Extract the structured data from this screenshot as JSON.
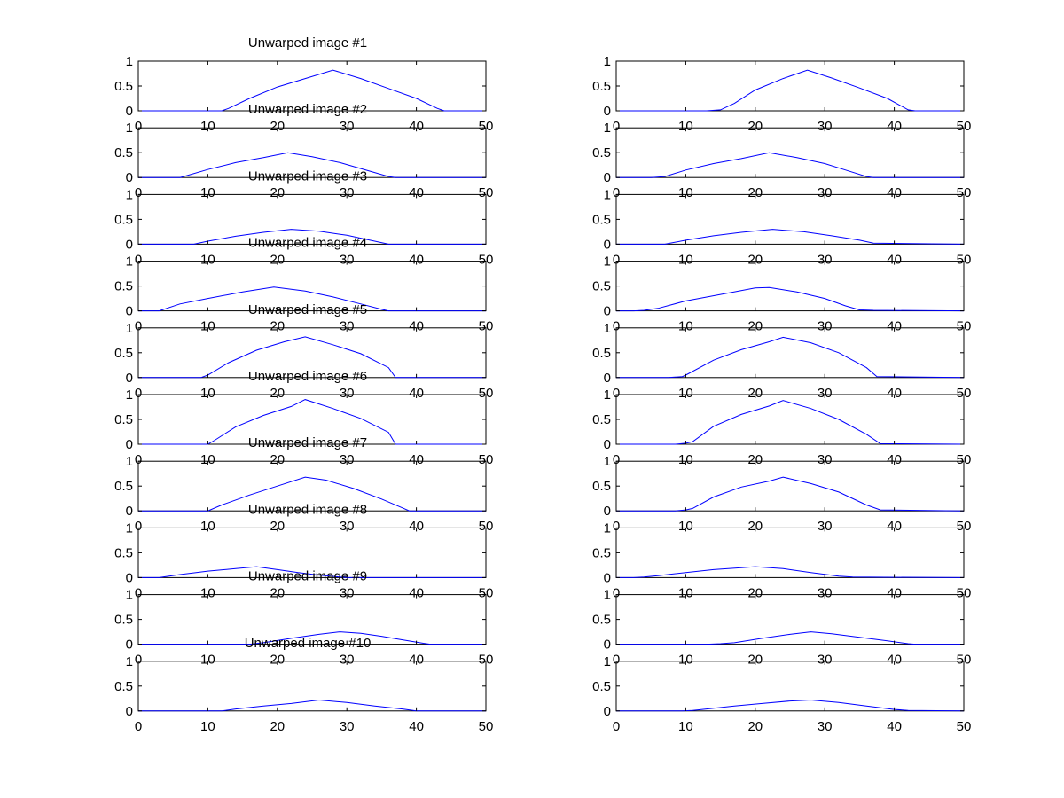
{
  "chart_data": [
    {
      "type": "line",
      "title": "Unwarped image #1",
      "xlim": [
        0,
        50
      ],
      "ylim": [
        0,
        1
      ],
      "xticks": [
        "0",
        "10",
        "20",
        "30",
        "40",
        "50"
      ],
      "yticks": [
        "0",
        "0.5",
        "1"
      ],
      "grid": false,
      "legend": "none",
      "series": [
        {
          "color": "#0000ff",
          "x": [
            0,
            12,
            13,
            16,
            20,
            24,
            28,
            32,
            36,
            40,
            43,
            44,
            50
          ],
          "y": [
            0,
            0,
            0.05,
            0.25,
            0.48,
            0.65,
            0.82,
            0.65,
            0.45,
            0.25,
            0.05,
            0,
            0
          ]
        }
      ]
    },
    {
      "type": "line",
      "title": "",
      "xlim": [
        0,
        50
      ],
      "ylim": [
        0,
        1
      ],
      "xticks": [
        "0",
        "10",
        "20",
        "30",
        "40",
        "50"
      ],
      "yticks": [
        "0",
        "0.5",
        "1"
      ],
      "grid": false,
      "legend": "none",
      "series": [
        {
          "color": "#0000ff",
          "x": [
            0,
            13,
            15,
            17,
            20,
            24,
            27.5,
            31,
            35,
            39,
            42,
            43,
            50
          ],
          "y": [
            0,
            0,
            0.02,
            0.15,
            0.42,
            0.65,
            0.82,
            0.66,
            0.46,
            0.25,
            0.02,
            0,
            0
          ]
        }
      ]
    },
    {
      "type": "line",
      "title": "Unwarped image #2",
      "xlim": [
        0,
        50
      ],
      "ylim": [
        0,
        1
      ],
      "xticks": [
        "0",
        "10",
        "20",
        "30",
        "40",
        "50"
      ],
      "yticks": [
        "0",
        "0.5",
        "1"
      ],
      "grid": false,
      "legend": "none",
      "series": [
        {
          "color": "#0000ff",
          "x": [
            0,
            6,
            7,
            10,
            14,
            18,
            21.5,
            25,
            29,
            33,
            36,
            37,
            50
          ],
          "y": [
            0,
            0,
            0.04,
            0.16,
            0.3,
            0.4,
            0.5,
            0.42,
            0.3,
            0.14,
            0.02,
            0,
            0
          ]
        }
      ]
    },
    {
      "type": "line",
      "title": "",
      "xlim": [
        0,
        50
      ],
      "ylim": [
        0,
        1
      ],
      "xticks": [
        "0",
        "10",
        "20",
        "30",
        "40",
        "50"
      ],
      "yticks": [
        "0",
        "0.5",
        "1"
      ],
      "grid": false,
      "legend": "none",
      "series": [
        {
          "color": "#0000ff",
          "x": [
            0,
            5,
            7,
            10,
            14,
            18,
            22,
            26,
            30,
            33,
            36,
            37,
            50
          ],
          "y": [
            0,
            0,
            0.02,
            0.15,
            0.28,
            0.38,
            0.5,
            0.4,
            0.28,
            0.15,
            0.02,
            0,
            0
          ]
        }
      ]
    },
    {
      "type": "line",
      "title": "Unwarped image #3",
      "xlim": [
        0,
        50
      ],
      "ylim": [
        0,
        1
      ],
      "xticks": [
        "0",
        "10",
        "20",
        "30",
        "40",
        "50"
      ],
      "yticks": [
        "0",
        "0.5",
        "1"
      ],
      "grid": false,
      "legend": "none",
      "series": [
        {
          "color": "#0000ff",
          "x": [
            0,
            8,
            10,
            14,
            18,
            22,
            26,
            30,
            34,
            36,
            50
          ],
          "y": [
            0,
            0,
            0.06,
            0.16,
            0.24,
            0.3,
            0.26,
            0.18,
            0.06,
            0,
            0
          ]
        }
      ]
    },
    {
      "type": "line",
      "title": "",
      "xlim": [
        0,
        50
      ],
      "ylim": [
        0,
        1
      ],
      "xticks": [
        "0",
        "10",
        "20",
        "30",
        "40",
        "50"
      ],
      "yticks": [
        "0",
        "0.5",
        "1"
      ],
      "grid": false,
      "legend": "none",
      "series": [
        {
          "color": "#0000ff",
          "x": [
            0,
            7,
            10,
            14,
            18,
            22.5,
            27,
            31,
            35,
            37,
            50
          ],
          "y": [
            0,
            0,
            0.08,
            0.17,
            0.24,
            0.3,
            0.25,
            0.17,
            0.08,
            0.02,
            0
          ]
        }
      ]
    },
    {
      "type": "line",
      "title": "Unwarped image #4",
      "xlim": [
        0,
        50
      ],
      "ylim": [
        0,
        1
      ],
      "xticks": [
        "0",
        "10",
        "20",
        "30",
        "40",
        "50"
      ],
      "yticks": [
        "0",
        "0.5",
        "1"
      ],
      "grid": false,
      "legend": "none",
      "series": [
        {
          "color": "#0000ff",
          "x": [
            0,
            3,
            6,
            10,
            15,
            19.5,
            24,
            28,
            32,
            35,
            36,
            50
          ],
          "y": [
            0,
            0,
            0.14,
            0.25,
            0.38,
            0.48,
            0.4,
            0.28,
            0.14,
            0.03,
            0,
            0
          ]
        }
      ]
    },
    {
      "type": "line",
      "title": "",
      "xlim": [
        0,
        50
      ],
      "ylim": [
        0,
        1
      ],
      "xticks": [
        "0",
        "10",
        "20",
        "30",
        "40",
        "50"
      ],
      "yticks": [
        "0",
        "0.5",
        "1"
      ],
      "grid": false,
      "legend": "none",
      "series": [
        {
          "color": "#0000ff",
          "x": [
            0,
            2.5,
            4,
            6,
            10,
            15,
            20,
            22,
            26,
            30,
            33,
            35,
            37,
            50
          ],
          "y": [
            0,
            0,
            0.01,
            0.05,
            0.2,
            0.33,
            0.46,
            0.47,
            0.38,
            0.25,
            0.1,
            0.02,
            0.01,
            0
          ]
        }
      ]
    },
    {
      "type": "line",
      "title": "Unwarped image #5",
      "xlim": [
        0,
        50
      ],
      "ylim": [
        0,
        1
      ],
      "xticks": [
        "0",
        "10",
        "20",
        "30",
        "40",
        "50"
      ],
      "yticks": [
        "0",
        "0.5",
        "1"
      ],
      "grid": false,
      "legend": "none",
      "series": [
        {
          "color": "#0000ff",
          "x": [
            0,
            9,
            10,
            13,
            17,
            21,
            24,
            28,
            32,
            36,
            37,
            50
          ],
          "y": [
            0,
            0,
            0.05,
            0.3,
            0.55,
            0.72,
            0.82,
            0.66,
            0.48,
            0.2,
            0,
            0
          ]
        }
      ]
    },
    {
      "type": "line",
      "title": "",
      "xlim": [
        0,
        50
      ],
      "ylim": [
        0,
        1
      ],
      "xticks": [
        "0",
        "10",
        "20",
        "30",
        "40",
        "50"
      ],
      "yticks": [
        "0",
        "0.5",
        "1"
      ],
      "grid": false,
      "legend": "none",
      "series": [
        {
          "color": "#0000ff",
          "x": [
            0,
            7.5,
            9.5,
            10,
            14,
            18,
            22,
            24,
            28,
            32,
            36,
            37.5,
            50
          ],
          "y": [
            0,
            0,
            0.02,
            0.05,
            0.35,
            0.56,
            0.72,
            0.81,
            0.7,
            0.5,
            0.2,
            0.02,
            0
          ]
        }
      ]
    },
    {
      "type": "line",
      "title": "Unwarped image #6",
      "xlim": [
        0,
        50
      ],
      "ylim": [
        0,
        1
      ],
      "xticks": [
        "0",
        "10",
        "20",
        "30",
        "40",
        "50"
      ],
      "yticks": [
        "0",
        "0.5",
        "1"
      ],
      "grid": false,
      "legend": "none",
      "series": [
        {
          "color": "#0000ff",
          "x": [
            0,
            10,
            11,
            14,
            18,
            22,
            24,
            28,
            32,
            36,
            37,
            50
          ],
          "y": [
            0,
            0,
            0.08,
            0.35,
            0.58,
            0.76,
            0.9,
            0.72,
            0.52,
            0.24,
            0,
            0
          ]
        }
      ]
    },
    {
      "type": "line",
      "title": "",
      "xlim": [
        0,
        50
      ],
      "ylim": [
        0,
        1
      ],
      "xticks": [
        "0",
        "10",
        "20",
        "30",
        "40",
        "50"
      ],
      "yticks": [
        "0",
        "0.5",
        "1"
      ],
      "grid": false,
      "legend": "none",
      "series": [
        {
          "color": "#0000ff",
          "x": [
            0,
            8.5,
            10,
            11,
            14,
            18,
            22,
            24,
            28,
            32,
            36,
            38,
            50
          ],
          "y": [
            0,
            0,
            0.02,
            0.05,
            0.36,
            0.6,
            0.77,
            0.88,
            0.72,
            0.5,
            0.2,
            0.01,
            0
          ]
        }
      ]
    },
    {
      "type": "line",
      "title": "Unwarped image #7",
      "xlim": [
        0,
        50
      ],
      "ylim": [
        0,
        1
      ],
      "xticks": [
        "0",
        "10",
        "20",
        "30",
        "40",
        "50"
      ],
      "yticks": [
        "0",
        "0.5",
        "1"
      ],
      "grid": false,
      "legend": "none",
      "series": [
        {
          "color": "#0000ff",
          "x": [
            0,
            10,
            12,
            16,
            20,
            24,
            27,
            31,
            35,
            38,
            39,
            50
          ],
          "y": [
            0,
            0,
            0.12,
            0.32,
            0.5,
            0.68,
            0.62,
            0.45,
            0.24,
            0.06,
            0,
            0
          ]
        }
      ]
    },
    {
      "type": "line",
      "title": "",
      "xlim": [
        0,
        50
      ],
      "ylim": [
        0,
        1
      ],
      "xticks": [
        "0",
        "10",
        "20",
        "30",
        "40",
        "50"
      ],
      "yticks": [
        "0",
        "0.5",
        "1"
      ],
      "grid": false,
      "legend": "none",
      "series": [
        {
          "color": "#0000ff",
          "x": [
            0,
            8.5,
            10,
            11,
            14,
            18,
            22,
            24,
            28,
            32,
            36,
            38,
            50
          ],
          "y": [
            0,
            0,
            0.02,
            0.05,
            0.28,
            0.48,
            0.6,
            0.68,
            0.55,
            0.38,
            0.12,
            0.02,
            0
          ]
        }
      ]
    },
    {
      "type": "line",
      "title": "Unwarped image #8",
      "xlim": [
        0,
        50
      ],
      "ylim": [
        0,
        1
      ],
      "xticks": [
        "0",
        "10",
        "20",
        "30",
        "40",
        "50"
      ],
      "yticks": [
        "0",
        "0.5",
        "1"
      ],
      "grid": false,
      "legend": "none",
      "series": [
        {
          "color": "#0000ff",
          "x": [
            0,
            3,
            6,
            10,
            14,
            17,
            20,
            23,
            26,
            29,
            30,
            50
          ],
          "y": [
            0,
            0,
            0.06,
            0.13,
            0.18,
            0.22,
            0.16,
            0.1,
            0.05,
            0.01,
            0,
            0
          ]
        }
      ]
    },
    {
      "type": "line",
      "title": "",
      "xlim": [
        0,
        50
      ],
      "ylim": [
        0,
        1
      ],
      "xticks": [
        "0",
        "10",
        "20",
        "30",
        "40",
        "50"
      ],
      "yticks": [
        "0",
        "0.5",
        "1"
      ],
      "grid": false,
      "legend": "none",
      "series": [
        {
          "color": "#0000ff",
          "x": [
            0,
            2.5,
            4,
            6,
            10,
            14,
            18,
            20,
            24,
            28,
            32,
            34,
            50
          ],
          "y": [
            0,
            0,
            0.01,
            0.04,
            0.1,
            0.16,
            0.2,
            0.22,
            0.18,
            0.1,
            0.03,
            0.01,
            0
          ]
        }
      ]
    },
    {
      "type": "line",
      "title": "Unwarped image #9",
      "xlim": [
        0,
        50
      ],
      "ylim": [
        0,
        1
      ],
      "xticks": [
        "0",
        "10",
        "20",
        "30",
        "40",
        "50"
      ],
      "yticks": [
        "0",
        "0.5",
        "1"
      ],
      "grid": false,
      "legend": "none",
      "series": [
        {
          "color": "#0000ff",
          "x": [
            0,
            16,
            18,
            22,
            26,
            29,
            32,
            35,
            38,
            41,
            42,
            50
          ],
          "y": [
            0,
            0,
            0.03,
            0.12,
            0.2,
            0.25,
            0.22,
            0.16,
            0.09,
            0.02,
            0,
            0
          ]
        }
      ]
    },
    {
      "type": "line",
      "title": "",
      "xlim": [
        0,
        50
      ],
      "ylim": [
        0,
        1
      ],
      "xticks": [
        "0",
        "10",
        "20",
        "30",
        "40",
        "50"
      ],
      "yticks": [
        "0",
        "0.5",
        "1"
      ],
      "grid": false,
      "legend": "none",
      "series": [
        {
          "color": "#0000ff",
          "x": [
            0,
            13,
            15,
            17,
            21,
            25,
            28,
            31,
            35,
            39,
            42,
            43,
            50
          ],
          "y": [
            0,
            0,
            0.01,
            0.03,
            0.12,
            0.2,
            0.25,
            0.21,
            0.14,
            0.07,
            0.01,
            0,
            0
          ]
        }
      ]
    },
    {
      "type": "line",
      "title": "Unwarped image #10",
      "xlim": [
        0,
        50
      ],
      "ylim": [
        0,
        1
      ],
      "xticks": [
        "0",
        "10",
        "20",
        "30",
        "40",
        "50"
      ],
      "yticks": [
        "0",
        "0.5",
        "1"
      ],
      "grid": false,
      "legend": "none",
      "series": [
        {
          "color": "#0000ff",
          "x": [
            0,
            12,
            14,
            18,
            22,
            26,
            30,
            34,
            38,
            40,
            50
          ],
          "y": [
            0,
            0,
            0.04,
            0.1,
            0.15,
            0.22,
            0.17,
            0.1,
            0.04,
            0,
            0
          ]
        }
      ]
    },
    {
      "type": "line",
      "title": "",
      "xlim": [
        0,
        50
      ],
      "ylim": [
        0,
        1
      ],
      "xticks": [
        "0",
        "10",
        "20",
        "30",
        "40",
        "50"
      ],
      "yticks": [
        "0",
        "0.5",
        "1"
      ],
      "grid": false,
      "legend": "none",
      "series": [
        {
          "color": "#0000ff",
          "x": [
            0,
            9.5,
            11,
            13,
            17,
            21,
            25,
            28,
            32,
            36,
            40,
            42,
            50
          ],
          "y": [
            0,
            0,
            0.01,
            0.04,
            0.1,
            0.15,
            0.2,
            0.22,
            0.17,
            0.1,
            0.03,
            0.01,
            0
          ]
        }
      ]
    }
  ]
}
